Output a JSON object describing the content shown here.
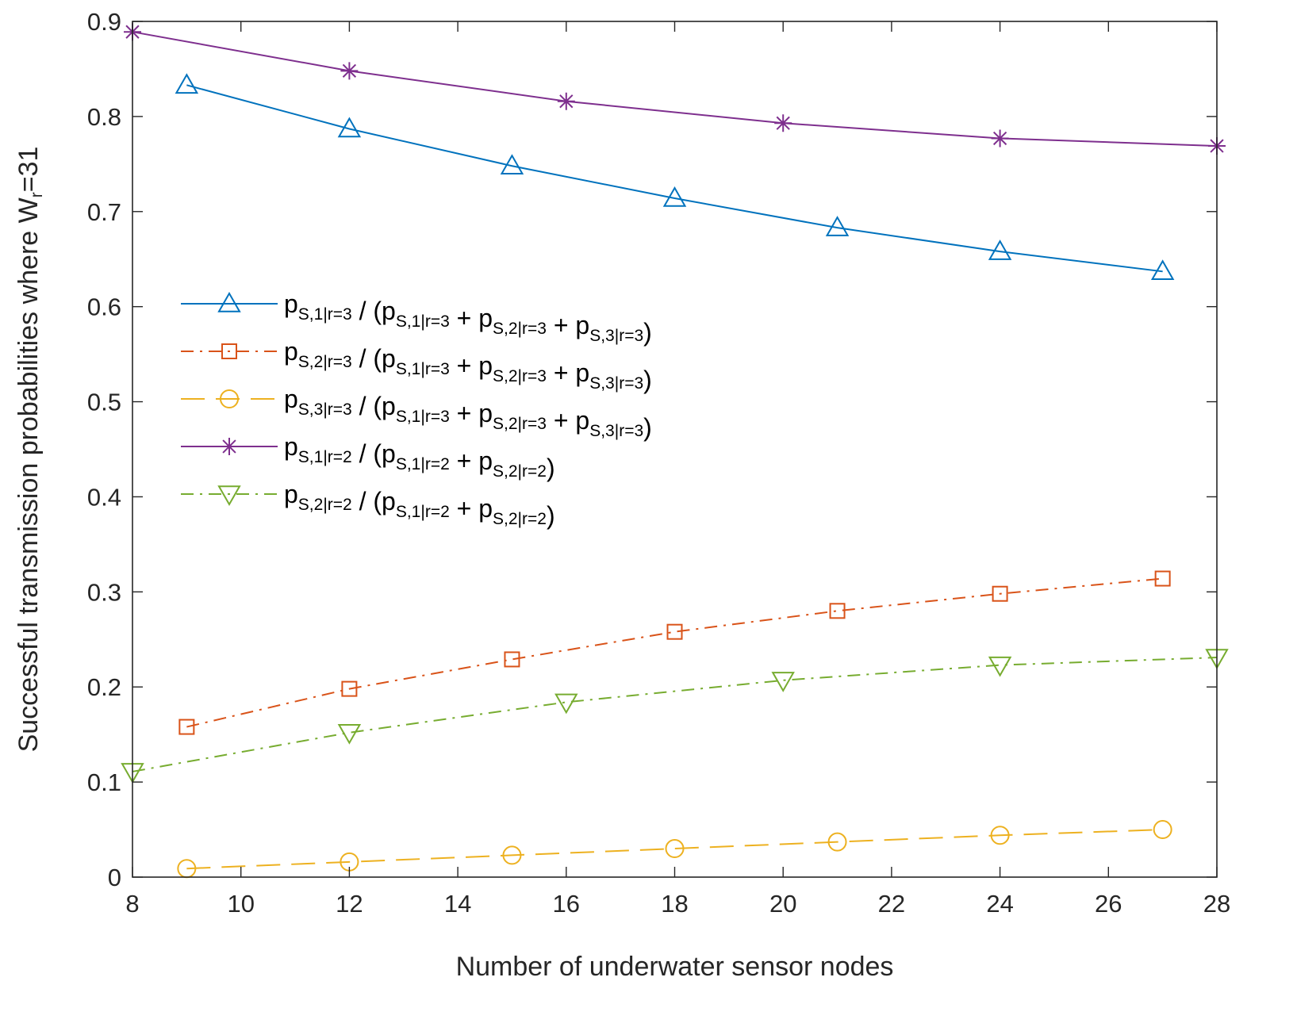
{
  "chart_data": {
    "type": "line",
    "title": "",
    "xlabel": "Number of underwater sensor nodes",
    "ylabel_main": "Successful transmission probabilities where W",
    "ylabel_sub": "r",
    "ylabel_suffix": "=31",
    "xlim": [
      8,
      28
    ],
    "ylim": [
      0,
      0.9
    ],
    "xticks": [
      8,
      10,
      12,
      14,
      16,
      18,
      20,
      22,
      24,
      26,
      28
    ],
    "yticks": [
      0,
      0.1,
      0.2,
      0.3,
      0.4,
      0.5,
      0.6,
      0.7,
      0.8,
      0.9
    ],
    "xtick_labels": [
      "8",
      "10",
      "12",
      "14",
      "16",
      "18",
      "20",
      "22",
      "24",
      "26",
      "28"
    ],
    "ytick_labels": [
      "0",
      "0.1",
      "0.2",
      "0.3",
      "0.4",
      "0.5",
      "0.6",
      "0.7",
      "0.8",
      "0.9"
    ],
    "grid": false,
    "legend_position": "center-left",
    "series": [
      {
        "name": "pS,1|r=3 / (pS,1|r=3 + pS,2|r=3 + pS,3|r=3)",
        "color": "#0072BD",
        "marker": "triangle-up",
        "line": "solid",
        "x": [
          9,
          12,
          15,
          18,
          21,
          24,
          27
        ],
        "values": [
          0.833,
          0.787,
          0.748,
          0.714,
          0.683,
          0.658,
          0.637
        ],
        "legend": [
          {
            "t": "p",
            "sub": false
          },
          {
            "t": "S,1|r=3",
            "sub": true
          },
          {
            "t": " / (p",
            "sub": false
          },
          {
            "t": "S,1|r=3",
            "sub": true
          },
          {
            "t": " + p",
            "sub": false
          },
          {
            "t": "S,2|r=3",
            "sub": true
          },
          {
            "t": " + p",
            "sub": false
          },
          {
            "t": "S,3|r=3",
            "sub": true
          },
          {
            "t": ")",
            "sub": false
          }
        ]
      },
      {
        "name": "pS,2|r=3 / (pS,1|r=3 + pS,2|r=3 + pS,3|r=3)",
        "color": "#D95319",
        "marker": "square",
        "line": "dashdot",
        "x": [
          9,
          12,
          15,
          18,
          21,
          24,
          27
        ],
        "values": [
          0.158,
          0.198,
          0.229,
          0.258,
          0.28,
          0.298,
          0.314
        ],
        "legend": [
          {
            "t": "p",
            "sub": false
          },
          {
            "t": "S,2|r=3",
            "sub": true
          },
          {
            "t": " / (p",
            "sub": false
          },
          {
            "t": "S,1|r=3",
            "sub": true
          },
          {
            "t": " + p",
            "sub": false
          },
          {
            "t": "S,2|r=3",
            "sub": true
          },
          {
            "t": " + p",
            "sub": false
          },
          {
            "t": "S,3|r=3",
            "sub": true
          },
          {
            "t": ")",
            "sub": false
          }
        ]
      },
      {
        "name": "pS,3|r=3 / (pS,1|r=3 + pS,2|r=3 + pS,3|r=3)",
        "color": "#EDB120",
        "marker": "circle",
        "line": "dashed",
        "x": [
          9,
          12,
          15,
          18,
          21,
          24,
          27
        ],
        "values": [
          0.009,
          0.016,
          0.023,
          0.03,
          0.037,
          0.044,
          0.05
        ],
        "legend": [
          {
            "t": "p",
            "sub": false
          },
          {
            "t": "S,3|r=3",
            "sub": true
          },
          {
            "t": " / (p",
            "sub": false
          },
          {
            "t": "S,1|r=3",
            "sub": true
          },
          {
            "t": " + p",
            "sub": false
          },
          {
            "t": "S,2|r=3",
            "sub": true
          },
          {
            "t": " + p",
            "sub": false
          },
          {
            "t": "S,3|r=3",
            "sub": true
          },
          {
            "t": ")",
            "sub": false
          }
        ]
      },
      {
        "name": "pS,1|r=2 / (pS,1|r=2 + pS,2|r=2)",
        "color": "#7E2F8E",
        "marker": "asterisk",
        "line": "solid",
        "x": [
          8,
          12,
          16,
          20,
          24,
          28
        ],
        "values": [
          0.889,
          0.848,
          0.816,
          0.793,
          0.777,
          0.769
        ],
        "legend": [
          {
            "t": "p",
            "sub": false
          },
          {
            "t": "S,1|r=2",
            "sub": true
          },
          {
            "t": " / (p",
            "sub": false
          },
          {
            "t": "S,1|r=2",
            "sub": true
          },
          {
            "t": " + p",
            "sub": false
          },
          {
            "t": "S,2|r=2",
            "sub": true
          },
          {
            "t": ")",
            "sub": false
          }
        ]
      },
      {
        "name": "pS,2|r=2 / (pS,1|r=2 + pS,2|r=2)",
        "color": "#77AC30",
        "marker": "triangle-down",
        "line": "dashdot",
        "x": [
          8,
          12,
          16,
          20,
          24,
          28
        ],
        "values": [
          0.111,
          0.152,
          0.184,
          0.207,
          0.223,
          0.231
        ],
        "legend": [
          {
            "t": "p",
            "sub": false
          },
          {
            "t": "S,2|r=2",
            "sub": true
          },
          {
            "t": " / (p",
            "sub": false
          },
          {
            "t": "S,1|r=2",
            "sub": true
          },
          {
            "t": " + p",
            "sub": false
          },
          {
            "t": "S,2|r=2",
            "sub": true
          },
          {
            "t": ")",
            "sub": false
          }
        ]
      }
    ]
  }
}
